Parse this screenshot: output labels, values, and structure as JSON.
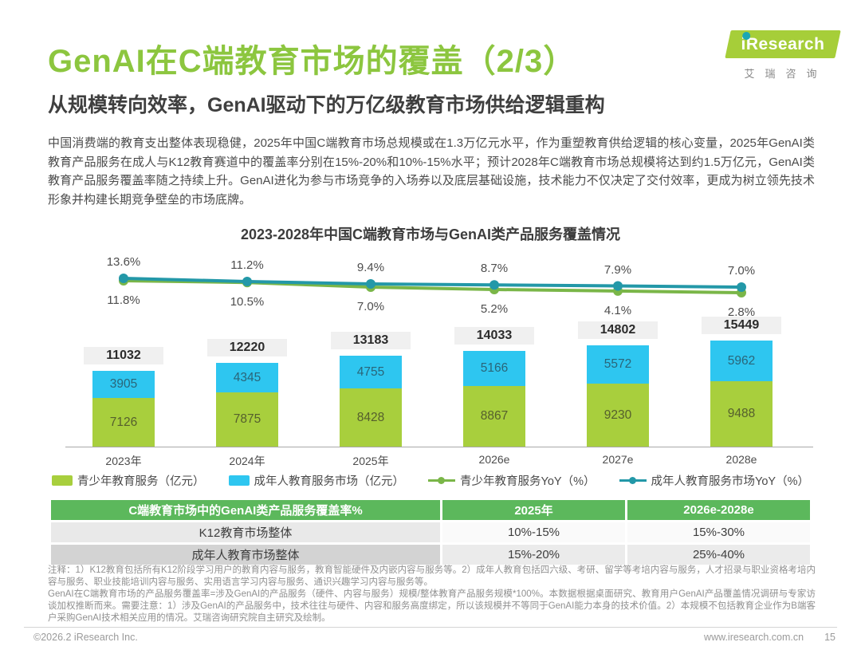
{
  "header": {
    "title": "GenAI在C端教育市场的覆盖（2/3）",
    "subtitle": "从规模转向效率，GenAI驱动下的万亿级教育市场供给逻辑重构",
    "logo": {
      "brand": "iResearch",
      "brand_cn": "艾瑞咨询"
    }
  },
  "intro": "中国消费端的教育支出整体表现稳健，2025年中国C端教育市场总规模或在1.3万亿元水平，作为重塑教育供给逻辑的核心变量，2025年GenAI类教育产品服务在成人与K12教育赛道中的覆盖率分别在15%-20%和10%-15%水平；预计2028年C端教育市场总规模将达到约1.5万亿元，GenAI类教育产品服务覆盖率随之持续上升。GenAI进化为参与市场竞争的入场券以及底层基础设施，技术能力不仅决定了交付效率，更成为树立领先技术形象并构建长期竞争壁垒的市场底牌。",
  "chart_data": {
    "type": "bar+line",
    "title": "2023-2028年中国C端教育市场与GenAI类产品服务覆盖情况",
    "categories": [
      "2023年",
      "2024年",
      "2025年",
      "2026e",
      "2027e",
      "2028e"
    ],
    "bar_series": [
      {
        "name": "青少年教育服务（亿元）",
        "color": "#a8cf3d",
        "text_color": "#555f2d",
        "values": [
          7126,
          7875,
          8428,
          8867,
          9230,
          9488
        ]
      },
      {
        "name": "成年人教育服务市场（亿元）",
        "color": "#2ec6f0",
        "text_color": "#2a6579",
        "values": [
          3905,
          4345,
          4755,
          5166,
          5572,
          5962
        ]
      }
    ],
    "totals": [
      11032,
      12220,
      13183,
      14033,
      14802,
      15449
    ],
    "line_series": [
      {
        "name": "青少年教育服务YoY（%）",
        "color": "#7ab648",
        "label_position": "below",
        "values": [
          11.8,
          10.5,
          7.0,
          5.2,
          4.1,
          2.8
        ]
      },
      {
        "name": "成年人教育服务市场YoY（%）",
        "color": "#2398a8",
        "label_position": "above",
        "values": [
          13.6,
          11.2,
          9.4,
          8.7,
          7.9,
          7.0
        ]
      }
    ],
    "legend": [
      {
        "label": "青少年教育服务（亿元）",
        "color": "#a8cf3d",
        "type": "bar"
      },
      {
        "label": "成年人教育服务市场（亿元）",
        "color": "#2ec6f0",
        "type": "bar"
      },
      {
        "label": "青少年教育服务YoY（%）",
        "color": "#7ab648",
        "type": "line"
      },
      {
        "label": "成年人教育服务市场YoY（%）",
        "color": "#2398a8",
        "type": "line"
      }
    ],
    "unit": "亿元",
    "grid": false,
    "legend_position": "bottom"
  },
  "table": {
    "header": [
      "C端教育市场中的GenAI类产品服务覆盖率%",
      "2025年",
      "2026e-2028e"
    ],
    "rows": [
      [
        "K12教育市场整体",
        "10%-15%",
        "15%-30%"
      ],
      [
        "成年人教育市场整体",
        "15%-20%",
        "25%-40%"
      ]
    ]
  },
  "notes": [
    "注释：1）K12教育包括所有K12阶段学习用户的教育内容与服务，教育智能硬件及内嵌内容与服务等。2）成年人教育包括四六级、考研、留学等考培内容与服务，人才招录与职业资格考培内容与服务、职业技能培训内容与服务、实用语言学习内容与服务、通识兴趣学习内容与服务等。",
    "GenAI在C端教育市场的产品服务覆盖率=涉及GenAI的产品服务（硬件、内容与服务）规模/整体教育产品服务规模*100%。本数据根据桌面研究、教育用户GenAI产品覆盖情况调研与专家访谈加权推断而来。需要注意：1）涉及GenAI的产品服务中，技术往往与硬件、内容和服务高度绑定，所以该规模并不等同于GenAI能力本身的技术价值。2）本规模不包括教育企业作为B端客户采购GenAI技术相关应用的情况。艾瑞咨询研究院自主研究及绘制。"
  ],
  "footer": {
    "copyright": "©2026.2 iResearch Inc.",
    "website": "www.iresearch.com.cn",
    "page": "15"
  },
  "colors": {
    "title_green": "#8cc63f",
    "logo_green": "#a6ce39",
    "logo_dot_teal": "#1ba7b4",
    "bar_teen_green": "#a8cf3d",
    "bar_adult_blue": "#2ec6f0",
    "line_teen_green": "#7ab648",
    "line_adult_teal": "#2398a8",
    "table_header_green": "#5cb85c",
    "total_label_bg": "#f0f0f0"
  }
}
